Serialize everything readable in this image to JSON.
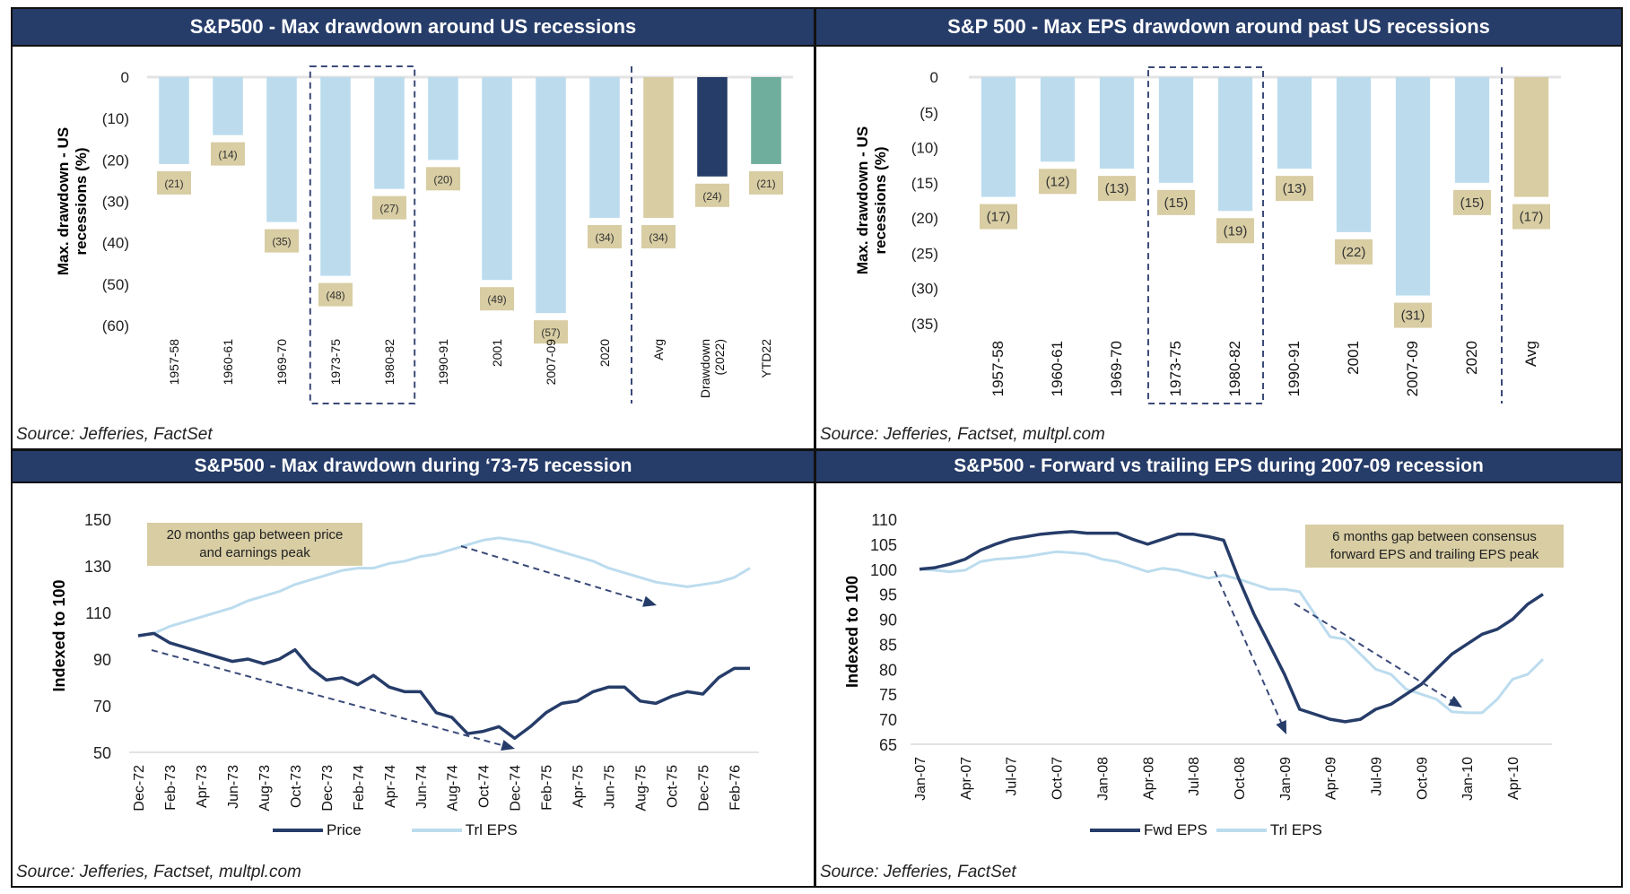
{
  "colors": {
    "navy": "#263c69",
    "light_blue": "#bcdcee",
    "tan": "#d8cda3",
    "teal": "#6fae9c",
    "grid": "#e3e3e3"
  },
  "panels": {
    "top_left": {
      "title": "S&P500 - Max drawdown around US recessions",
      "source": "Source: Jefferies, FactSet"
    },
    "top_right": {
      "title": "S&P 500 - Max EPS drawdown around past US recessions",
      "source": "Source: Jefferies, Factset, multpl.com"
    },
    "bottom_left": {
      "title": "S&P500 - Max drawdown during ‘73-75 recession",
      "source": "Source: Jefferies, Factset, multpl.com",
      "annotation_line1": "20 months gap  between price",
      "annotation_line2": "and earnings  peak",
      "legend": [
        "Price",
        "Trl EPS"
      ]
    },
    "bottom_right": {
      "title": "S&P500 - Forward vs trailing EPS during 2007-09 recession",
      "source": "Source: Jefferies, FactSet",
      "annotation_line1": "6 months gap  between consensus",
      "annotation_line2": "forward EPS and trailing  EPS peak",
      "legend": [
        "Fwd EPS",
        "Trl EPS"
      ]
    }
  },
  "chart_data": [
    {
      "type": "bar",
      "title": "S&P500 - Max drawdown around US recessions",
      "ylabel": "Max. drawdown - US recessions (%)",
      "xlabel": "",
      "categories": [
        "1957-58",
        "1960-61",
        "1969-70",
        "1973-75",
        "1980-82",
        "1990-91",
        "2001",
        "2007-09",
        "2020",
        "Avg",
        "Drawdown (2022)",
        "YTD22"
      ],
      "values": [
        -21,
        -14,
        -35,
        -48,
        -27,
        -20,
        -49,
        -57,
        -34,
        -34,
        -24,
        -21
      ],
      "data_labels": [
        "(21)",
        "(14)",
        "(35)",
        "(48)",
        "(27)",
        "(20)",
        "(49)",
        "(57)",
        "(34)",
        "(34)",
        "(24)",
        "(21)"
      ],
      "bar_colors": [
        "light_blue",
        "light_blue",
        "light_blue",
        "light_blue",
        "light_blue",
        "light_blue",
        "light_blue",
        "light_blue",
        "light_blue",
        "tan",
        "navy",
        "teal"
      ],
      "ylim": [
        -60,
        0
      ],
      "yticks": [
        0,
        -10,
        -20,
        -30,
        -40,
        -50,
        -60
      ],
      "ytick_labels": [
        "0",
        "(10)",
        "(20)",
        "(30)",
        "(40)",
        "(50)",
        "(60)"
      ],
      "highlight_box_categories": [
        "1973-75",
        "1980-82"
      ],
      "separator_before": "Avg",
      "grid": false,
      "legend": "none"
    },
    {
      "type": "bar",
      "title": "S&P 500 - Max EPS drawdown around past US recessions",
      "ylabel": "Max. drawdown - US recessions (%)",
      "xlabel": "",
      "categories": [
        "1957-58",
        "1960-61",
        "1969-70",
        "1973-75",
        "1980-82",
        "1990-91",
        "2001",
        "2007-09",
        "2020",
        "Avg"
      ],
      "values": [
        -17,
        -12,
        -13,
        -15,
        -19,
        -13,
        -22,
        -31,
        -15,
        -17
      ],
      "data_labels": [
        "(17)",
        "(12)",
        "(13)",
        "(15)",
        "(19)",
        "(13)",
        "(22)",
        "(31)",
        "(15)",
        "(17)"
      ],
      "bar_colors": [
        "light_blue",
        "light_blue",
        "light_blue",
        "light_blue",
        "light_blue",
        "light_blue",
        "light_blue",
        "light_blue",
        "light_blue",
        "tan"
      ],
      "ylim": [
        -35,
        0
      ],
      "yticks": [
        0,
        -5,
        -10,
        -15,
        -20,
        -25,
        -30,
        -35
      ],
      "ytick_labels": [
        "0",
        "(5)",
        "(10)",
        "(15)",
        "(20)",
        "(25)",
        "(30)",
        "(35)"
      ],
      "highlight_box_categories": [
        "1973-75",
        "1980-82"
      ],
      "separator_before": "Avg",
      "grid": false,
      "legend": "none"
    },
    {
      "type": "line",
      "title": "S&P500 - Max drawdown during ‘73-75 recession",
      "ylabel": "Indexed to 100",
      "xlabel": "",
      "x_tick_labels": [
        "Dec-72",
        "Feb-73",
        "Apr-73",
        "Jun-73",
        "Aug-73",
        "Oct-73",
        "Dec-73",
        "Feb-74",
        "Apr-74",
        "Jun-74",
        "Aug-74",
        "Oct-74",
        "Dec-74",
        "Feb-75",
        "Apr-75",
        "Jun-75",
        "Aug-75",
        "Oct-75",
        "Dec-75",
        "Feb-76"
      ],
      "x_months": 40,
      "ylim": [
        50,
        150
      ],
      "yticks": [
        50,
        70,
        90,
        110,
        130,
        150
      ],
      "series": [
        {
          "name": "Price",
          "color": "navy",
          "values": [
            100,
            101,
            97,
            95,
            93,
            91,
            89,
            90,
            88,
            90,
            94,
            86,
            81,
            82,
            79,
            83,
            78,
            76,
            76,
            67,
            65,
            58,
            59,
            61,
            56,
            61,
            67,
            71,
            72,
            76,
            78,
            78,
            72,
            71,
            74,
            76,
            75,
            82,
            86,
            86
          ]
        },
        {
          "name": "Trl EPS",
          "color": "light_blue",
          "values": [
            100,
            101,
            104,
            106,
            108,
            110,
            112,
            115,
            117,
            119,
            122,
            124,
            126,
            128,
            129,
            129,
            131,
            132,
            134,
            135,
            137,
            139,
            141,
            142,
            141,
            140,
            138,
            136,
            134,
            132,
            129,
            127,
            125,
            123,
            122,
            121,
            122,
            123,
            125,
            129
          ]
        }
      ],
      "annotation": "20 months gap between price and earnings peak",
      "arrows": [
        "Price trend Dec-72 to Dec-74 (dashed, downward)",
        "Trl EPS trend Aug-74 to Aug-75 (dashed, downward)"
      ],
      "legend": "bottom"
    },
    {
      "type": "line",
      "title": "S&P500 - Forward vs trailing EPS during 2007-09 recession",
      "ylabel": "Indexed to 100",
      "xlabel": "",
      "x_tick_labels": [
        "Jan-07",
        "Apr-07",
        "Jul-07",
        "Oct-07",
        "Jan-08",
        "Apr-08",
        "Jul-08",
        "Oct-08",
        "Jan-09",
        "Apr-09",
        "Jul-09",
        "Oct-09",
        "Jan-10",
        "Apr-10"
      ],
      "x_months": 42,
      "ylim": [
        65,
        110
      ],
      "yticks": [
        65,
        70,
        75,
        80,
        85,
        90,
        95,
        100,
        105,
        110
      ],
      "series": [
        {
          "name": "Fwd EPS",
          "color": "navy",
          "values": [
            100,
            100.3,
            101,
            102,
            103.8,
            105,
            106,
            106.5,
            107,
            107.3,
            107.5,
            107.2,
            107.2,
            107.2,
            106,
            105,
            106,
            107,
            107,
            106.5,
            105.8,
            98,
            91,
            85,
            79,
            72,
            71,
            70,
            69.5,
            70,
            72,
            73,
            75,
            77,
            80,
            83,
            85,
            87,
            88,
            90,
            93,
            95
          ]
        },
        {
          "name": "Trl EPS",
          "color": "light_blue",
          "values": [
            100,
            99.8,
            99.5,
            99.8,
            101.5,
            102,
            102.2,
            102.5,
            103,
            103.5,
            103.3,
            103,
            102,
            101.5,
            100.5,
            99.5,
            100.2,
            99.8,
            99,
            98.2,
            98.8,
            98,
            97,
            96,
            96,
            95.5,
            91,
            86.5,
            86,
            83,
            80,
            79,
            76,
            75,
            74,
            71.5,
            71.3,
            71.3,
            74,
            78,
            79,
            82
          ]
        }
      ],
      "annotation": "6 months gap between consensus forward EPS and trailing EPS peak",
      "arrows": [
        "Fwd EPS trend Sep-08 to Jan-09 (dashed, downward)",
        "Trl EPS trend Jan-09 to Dec-09 (dashed, downward)"
      ],
      "legend": "bottom"
    }
  ]
}
